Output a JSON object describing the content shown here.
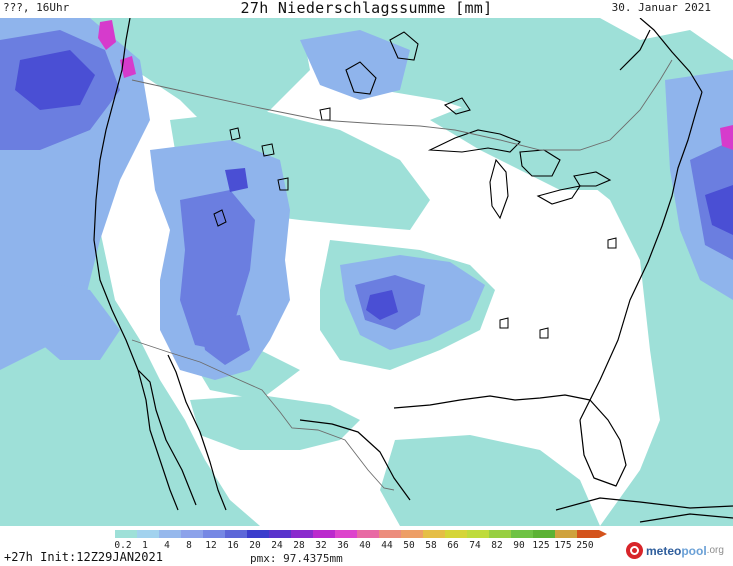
{
  "header": {
    "left": "???, 16Uhr",
    "title": "27h Niederschlagssumme [mm]",
    "date": "30. Januar 2021"
  },
  "legend": {
    "ticks": [
      "0.2",
      "1",
      "4",
      "8",
      "12",
      "16",
      "20",
      "24",
      "28",
      "32",
      "36",
      "40",
      "44",
      "50",
      "58",
      "66",
      "74",
      "82",
      "90",
      "125",
      "175",
      "250"
    ],
    "colors": [
      "#9ee0d8",
      "#a2d2ee",
      "#96b8ec",
      "#8ca2ea",
      "#7688e4",
      "#5d67d8",
      "#3b3dcc",
      "#5a33cc",
      "#8a2acd",
      "#bb29cd",
      "#dd44cc",
      "#e86aa4",
      "#ec8c7c",
      "#ed9e66",
      "#e5be46",
      "#d5d538",
      "#bfdb3c",
      "#98cf42",
      "#6ec244",
      "#5cb234",
      "#cfa23d",
      "#d4531c"
    ]
  },
  "footer": {
    "run": "+27h Init:12Z29JAN2021",
    "pmx": "pmx: 97.4375mm",
    "brand": {
      "part1": "meteo",
      "part2": "pool",
      "part3": ".org"
    }
  },
  "colors": {
    "light": "#9ee0d8",
    "medium": "#8fb4ec",
    "strong": "#6b7ee0",
    "intense": "#4a4fd4",
    "peak": "#d63bcc",
    "coast": "#000000",
    "border": "#6d6d6d"
  }
}
